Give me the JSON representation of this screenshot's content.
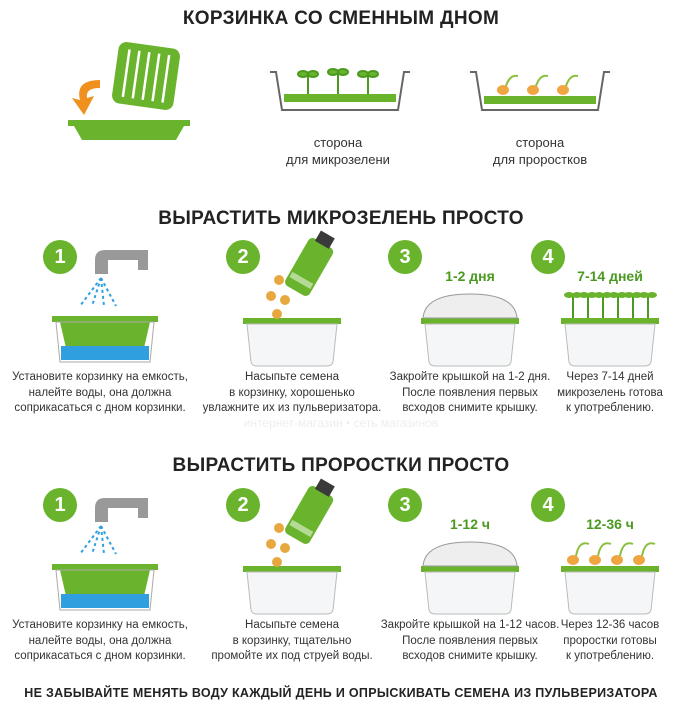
{
  "title": "КОРЗИНКА СО СМЕННЫМ ДНОМ",
  "sides": [
    {
      "label": "сторона\nдля микрозелени"
    },
    {
      "label": "сторона\nдля проростков"
    }
  ],
  "section1": {
    "title": "ВЫРАСТИТЬ МИКРОЗЕЛЕНЬ ПРОСТО",
    "steps": [
      {
        "num": "1",
        "text": "Установите корзинку на емкость,\nналейте воды, она должна\nсоприкасаться с дном корзинки."
      },
      {
        "num": "2",
        "text": "Насыпьте семена\nв корзинку, хорошенько\nувлажните их из пульверизатора."
      },
      {
        "num": "3",
        "duration": "1-2 дня",
        "text": "Закройте крышкой на 1-2 дня.\nПосле появления первых\nвсходов снимите крышку."
      },
      {
        "num": "4",
        "duration": "7-14 дней",
        "text": "Через 7-14 дней\nмикрозелень готова\nк употреблению."
      }
    ]
  },
  "section2": {
    "title": "ВЫРАСТИТЬ ПРОРОСТКИ ПРОСТО",
    "steps": [
      {
        "num": "1",
        "text": "Установите корзинку на емкость,\nналейте воды, она должна\nсоприкасаться с дном корзинки."
      },
      {
        "num": "2",
        "text": "Насыпьте семена\nв корзинку, тщательно\nпромойте их под струей воды."
      },
      {
        "num": "3",
        "duration": "1-12 ч",
        "text": "Закройте крышкой на 1-12 часов.\nПосле появления первых\nвсходов снимите крышку."
      },
      {
        "num": "4",
        "duration": "12-36 ч",
        "text": "Через 12-36 часов\nпроростки готовы\nк употреблению."
      }
    ]
  },
  "footer": "НЕ ЗАБЫВАЙТЕ МЕНЯТЬ ВОДУ КАЖДЫЙ ДЕНЬ И ОПРЫСКИВАТЬ СЕМЕНА ИЗ ПУЛЬВЕРИЗАТОРА",
  "watermark": "интернет-магазин • сеть магазинов",
  "colors": {
    "green": "#6ab42d",
    "orange": "#f0901e",
    "water": "#2f9fe0"
  }
}
